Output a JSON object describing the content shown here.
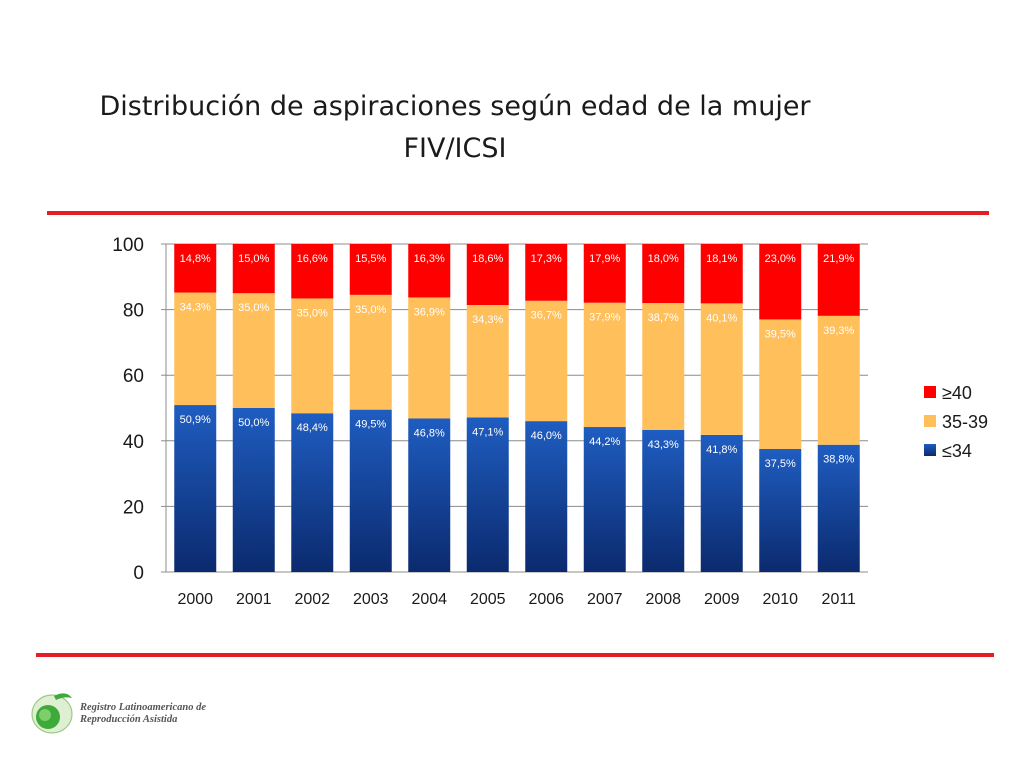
{
  "slide": {
    "title_line1": "Distribución de aspiraciones según edad de la mujer",
    "title_line2": "FIV/ICSI"
  },
  "logo": {
    "line1": "Registro Latinoamericano de",
    "line2": "Reproducción Asistida"
  },
  "colors": {
    "red": "#ff0000",
    "orange": "#ffbf5a",
    "blue_top": "#1f5dc1",
    "blue_bottom": "#0b2a6e",
    "rule": "#e31e24"
  },
  "chart_data": {
    "type": "bar",
    "stacked": true,
    "categories": [
      "2000",
      "2001",
      "2002",
      "2003",
      "2004",
      "2005",
      "2006",
      "2007",
      "2008",
      "2009",
      "2010",
      "2011"
    ],
    "ylim": [
      0,
      100
    ],
    "yticks": [
      "0",
      "20",
      "40",
      "60",
      "80",
      "100"
    ],
    "legend_position": "right",
    "series": [
      {
        "name": "≤34",
        "color": "blue",
        "values": [
          50.9,
          50.0,
          48.4,
          49.5,
          46.8,
          47.1,
          46.0,
          44.2,
          43.3,
          41.8,
          37.5,
          38.8
        ],
        "labels": [
          "50,9%",
          "50,0%",
          "48,4%",
          "49,5%",
          "46,8%",
          "47,1%",
          "46,0%",
          "44,2%",
          "43,3%",
          "41,8%",
          "37,5%",
          "38,8%"
        ]
      },
      {
        "name": "35-39",
        "color": "orange",
        "values": [
          34.3,
          35.0,
          35.0,
          35.0,
          36.9,
          34.3,
          36.7,
          37.9,
          38.7,
          40.1,
          39.5,
          39.3
        ],
        "labels": [
          "34,3%",
          "35,0%",
          "35,0%",
          "35,0%",
          "36,9%",
          "34,3%",
          "36,7%",
          "37,9%",
          "38,7%",
          "40,1%",
          "39,5%",
          "39,3%"
        ]
      },
      {
        "name": "≥40",
        "color": "red",
        "values": [
          14.8,
          15.0,
          16.6,
          15.5,
          16.3,
          18.6,
          17.3,
          17.9,
          18.0,
          18.1,
          23.0,
          21.9
        ],
        "labels": [
          "14,8%",
          "15,0%",
          "16,6%",
          "15,5%",
          "16,3%",
          "18,6%",
          "17,3%",
          "17,9%",
          "18,0%",
          "18,1%",
          "23,0%",
          "21,9%"
        ]
      }
    ]
  }
}
